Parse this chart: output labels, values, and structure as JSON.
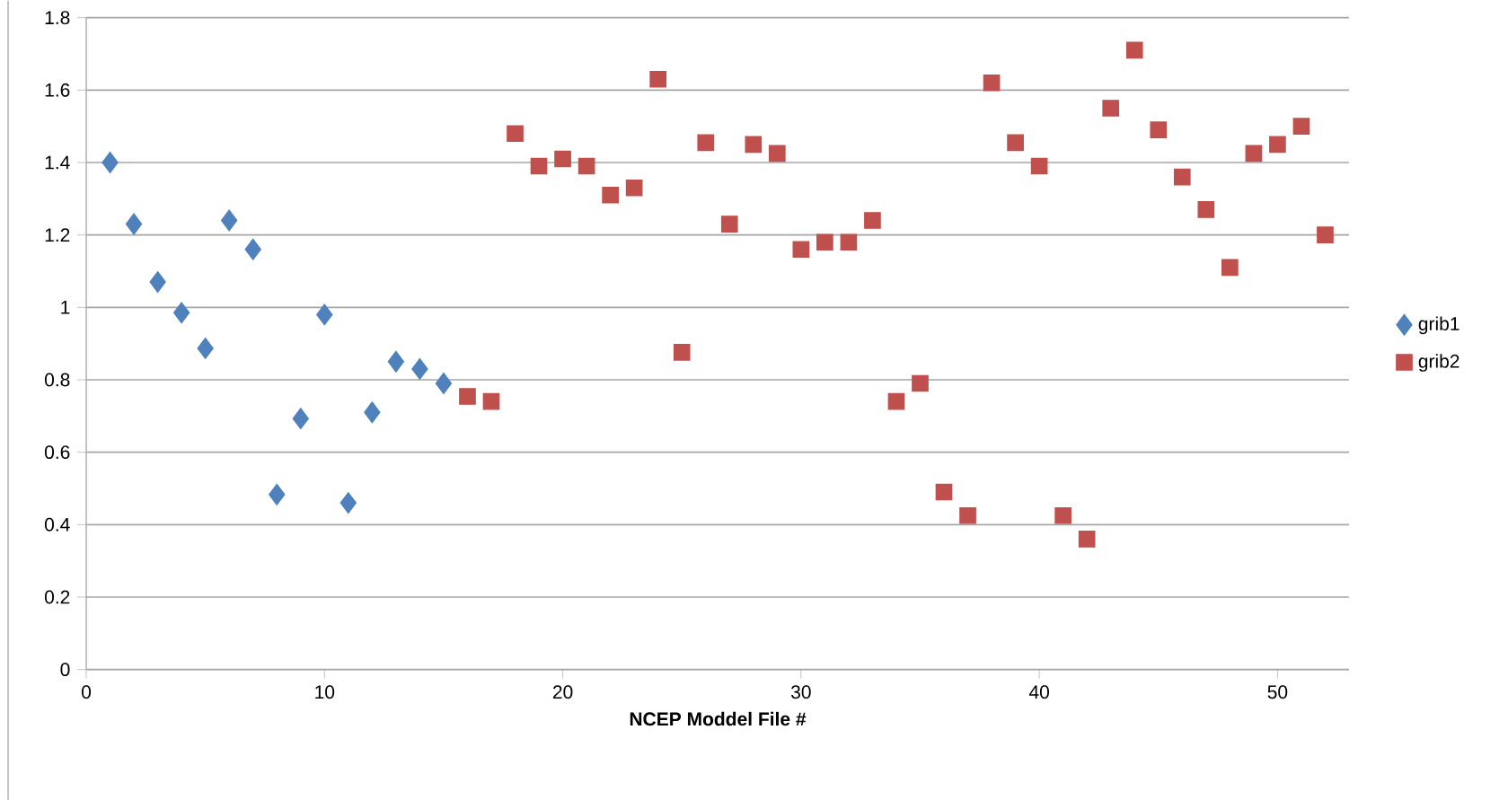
{
  "chart_data": {
    "type": "scatter",
    "xlabel": "NCEP Moddel  File #",
    "xlim": [
      0,
      53
    ],
    "xticks": [
      0,
      10,
      20,
      30,
      40,
      50
    ],
    "ylim": [
      0,
      1.8
    ],
    "yticks": [
      0,
      0.2,
      0.4,
      0.6,
      0.8,
      1,
      1.2,
      1.4,
      1.6,
      1.8
    ],
    "grid": "y",
    "legend": "right",
    "series": [
      {
        "name": "grib1",
        "color": "#4f81bd",
        "marker": "diamond",
        "x": [
          1,
          2,
          3,
          4,
          5,
          6,
          7,
          8,
          9,
          10,
          11,
          12,
          13,
          14,
          15
        ],
        "values": [
          1.4,
          1.23,
          1.07,
          0.985,
          0.887,
          1.24,
          1.16,
          0.483,
          0.693,
          0.98,
          0.46,
          0.71,
          0.85,
          0.83,
          0.79
        ]
      },
      {
        "name": "grib2",
        "color": "#c0504d",
        "marker": "square",
        "x": [
          16,
          17,
          18,
          19,
          20,
          21,
          22,
          23,
          24,
          25,
          26,
          27,
          28,
          29,
          30,
          31,
          32,
          33,
          34,
          35,
          36,
          37,
          38,
          39,
          40,
          41,
          42,
          43,
          44,
          45,
          46,
          47,
          48,
          49,
          50,
          51,
          52
        ],
        "values": [
          0.754,
          0.74,
          1.48,
          1.39,
          1.41,
          1.39,
          1.31,
          1.33,
          1.63,
          0.876,
          1.455,
          1.23,
          1.45,
          1.425,
          1.16,
          1.18,
          1.18,
          1.24,
          0.74,
          0.79,
          0.49,
          0.425,
          1.62,
          1.455,
          1.39,
          0.425,
          0.36,
          1.55,
          1.71,
          1.49,
          1.36,
          1.27,
          1.11,
          1.425,
          1.45,
          1.5,
          1.2
        ]
      }
    ]
  }
}
